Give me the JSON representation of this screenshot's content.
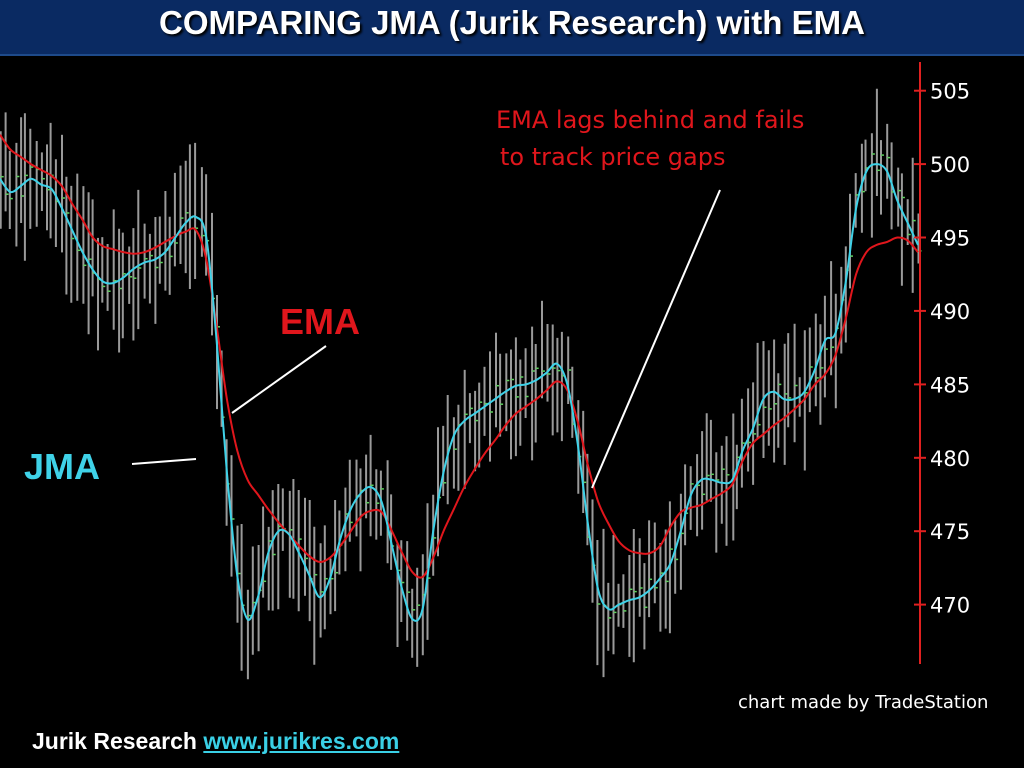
{
  "header": {
    "title": "COMPARING JMA (Jurik Research) with EMA"
  },
  "footer": {
    "company": "Jurik Research",
    "link_text": "www.jurikres.com"
  },
  "colors": {
    "ema": "#e0161c",
    "jma": "#3fd2e8",
    "bars": "#9a9a9a",
    "axis": "#e02020",
    "background": "#000000",
    "title_bar": "#0a2a62"
  },
  "chart_data": {
    "type": "line",
    "ylim": [
      468,
      506
    ],
    "y_ticks": [
      470,
      475,
      480,
      485,
      490,
      495,
      500,
      505
    ],
    "grid": false,
    "credit": "chart made by TradeStation",
    "annotations": {
      "ema_lag": [
        "EMA lags behind and fails",
        "to track price gaps"
      ],
      "ema_label": "EMA",
      "jma_label": "JMA"
    },
    "series": [
      {
        "name": "JMA",
        "values": [
          499.0,
          498.1,
          498.5,
          499.0,
          498.6,
          498.3,
          497.0,
          495.5,
          494.0,
          492.8,
          492.0,
          491.9,
          492.3,
          492.9,
          493.3,
          493.5,
          494.0,
          495.0,
          496.0,
          496.4,
          495.0,
          488.0,
          479.0,
          472.0,
          469.0,
          470.5,
          473.5,
          475.0,
          474.8,
          473.5,
          472.0,
          470.5,
          471.8,
          474.5,
          476.5,
          477.6,
          478.0,
          477.0,
          474.0,
          471.0,
          469.0,
          469.8,
          475.0,
          479.0,
          481.5,
          482.5,
          483.0,
          483.5,
          484.0,
          484.5,
          484.9,
          485.0,
          485.3,
          485.8,
          486.4,
          485.0,
          481.0,
          475.5,
          471.0,
          469.7,
          470.0,
          470.3,
          470.5,
          471.0,
          471.8,
          472.8,
          475.0,
          477.5,
          478.5,
          478.5,
          478.3,
          478.5,
          480.5,
          482.0,
          484.0,
          484.5,
          484.0,
          484.0,
          484.5,
          486.0,
          488.0,
          488.5,
          492.0,
          497.0,
          499.5,
          500.0,
          499.5,
          497.5,
          496.0,
          494.5
        ]
      },
      {
        "name": "EMA",
        "values": [
          502.0,
          501.0,
          500.5,
          500.0,
          499.6,
          499.2,
          498.5,
          497.3,
          496.2,
          495.0,
          494.4,
          494.2,
          494.0,
          493.9,
          494.0,
          494.3,
          494.7,
          495.1,
          495.4,
          495.5,
          493.5,
          489.0,
          484.0,
          480.5,
          478.5,
          477.5,
          476.5,
          475.6,
          474.8,
          474.0,
          473.3,
          472.9,
          473.2,
          474.0,
          475.0,
          476.0,
          476.4,
          476.3,
          475.0,
          473.5,
          472.2,
          471.9,
          473.2,
          475.0,
          476.5,
          478.0,
          479.2,
          480.3,
          481.2,
          482.2,
          483.0,
          483.5,
          484.0,
          484.6,
          485.2,
          484.6,
          482.5,
          479.5,
          477.0,
          475.5,
          474.3,
          473.7,
          473.5,
          473.5,
          474.0,
          475.3,
          476.3,
          476.6,
          476.8,
          477.2,
          477.6,
          478.2,
          479.8,
          481.0,
          481.6,
          482.2,
          482.7,
          483.3,
          484.0,
          485.0,
          485.7,
          487.0,
          489.5,
          492.5,
          494.0,
          494.5,
          494.7,
          495.0,
          494.8,
          494.0
        ]
      }
    ]
  }
}
